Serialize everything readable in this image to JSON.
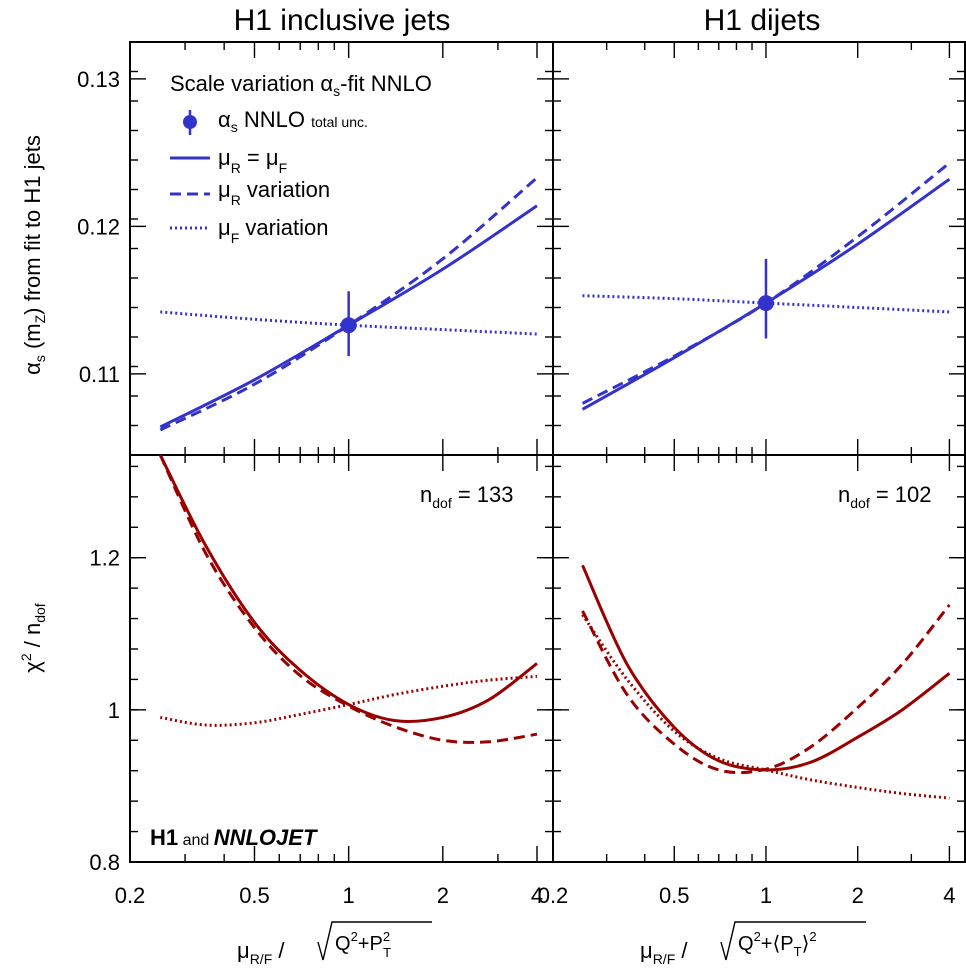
{
  "titles": {
    "left": "H1 inclusive jets",
    "right": "H1 dijets"
  },
  "y_axis": {
    "top_label": "αs (mZ) from fit to H1 jets",
    "bottom_label": "χ2 / ndof",
    "top_ticks": [
      "0.11",
      "0.12",
      "0.13"
    ],
    "bottom_ticks": [
      "0.8",
      "1",
      "1.2"
    ]
  },
  "x_axis": {
    "ticks": [
      "0.2",
      "0.5",
      "1",
      "2",
      "4"
    ],
    "left_label": "μR/F / √(Q2+PT2)",
    "right_label": "μR/F / √(Q2+⟨PT⟩2)"
  },
  "legend": {
    "title": "Scale variation αs-fit NNLO",
    "items": [
      {
        "label": "αs NNLO total unc.",
        "style": "point"
      },
      {
        "label": "μR = μF",
        "style": "solid"
      },
      {
        "label": "μR variation",
        "style": "dashed"
      },
      {
        "label": "μF variation",
        "style": "dotted"
      }
    ]
  },
  "ndof": {
    "left": "ndof = 133",
    "right": "ndof = 102"
  },
  "logo": "H1 and NNLOJET",
  "colors": {
    "alpha_s": "#3333cc",
    "chi2": "#990000"
  },
  "chart_data": [
    {
      "type": "line",
      "panel": "H1 inclusive jets, alpha_s",
      "x": [
        0.25,
        0.5,
        1,
        2,
        4
      ],
      "xscale": "log",
      "xlim": [
        0.2,
        4.5
      ],
      "ylim": [
        0.1045,
        0.1325
      ],
      "ylabel": "αs (mZ) from fit to H1 jets",
      "point": {
        "x": 1,
        "y": 0.1133,
        "err_up": 0.0023,
        "err_down": 0.0021
      },
      "series": [
        {
          "name": "μR = μF",
          "style": "solid",
          "values": [
            0.1064,
            0.1096,
            0.1133,
            0.1171,
            0.1214
          ]
        },
        {
          "name": "μR variation",
          "style": "dashed",
          "values": [
            0.1062,
            0.1093,
            0.1133,
            0.1178,
            0.1233
          ]
        },
        {
          "name": "μF variation",
          "style": "dotted",
          "values": [
            0.1142,
            0.1137,
            0.1133,
            0.113,
            0.1127
          ]
        }
      ]
    },
    {
      "type": "line",
      "panel": "H1 dijets, alpha_s",
      "x": [
        0.25,
        0.5,
        1,
        2,
        4
      ],
      "xscale": "log",
      "xlim": [
        0.2,
        4.5
      ],
      "ylim": [
        0.1045,
        0.1325
      ],
      "point": {
        "x": 1,
        "y": 0.1148,
        "err_up": 0.003,
        "err_down": 0.0024
      },
      "series": [
        {
          "name": "μR = μF",
          "style": "solid",
          "values": [
            0.1076,
            0.1111,
            0.1148,
            0.1188,
            0.1232
          ]
        },
        {
          "name": "μR variation",
          "style": "dashed",
          "values": [
            0.108,
            0.1112,
            0.1148,
            0.1193,
            0.1243
          ]
        },
        {
          "name": "μF variation",
          "style": "dotted",
          "values": [
            0.1153,
            0.1151,
            0.1148,
            0.1145,
            0.1142
          ]
        }
      ]
    },
    {
      "type": "line",
      "panel": "H1 inclusive jets, chi2/ndof",
      "x": [
        0.25,
        0.35,
        0.5,
        0.7,
        1,
        1.4,
        2,
        2.8,
        4
      ],
      "xscale": "log",
      "xlim": [
        0.2,
        4.5
      ],
      "ylim": [
        0.8,
        1.335
      ],
      "ylabel": "χ2 / ndof",
      "annotation": "ndof = 133",
      "series": [
        {
          "name": "μR = μF",
          "style": "solid",
          "values": [
            1.345,
            1.215,
            1.115,
            1.052,
            1.007,
            0.986,
            0.99,
            1.013,
            1.061
          ]
        },
        {
          "name": "μR variation",
          "style": "dashed",
          "values": [
            1.335,
            1.205,
            1.108,
            1.045,
            1.005,
            0.978,
            0.96,
            0.958,
            0.968
          ]
        },
        {
          "name": "μF variation",
          "style": "dotted",
          "values": [
            0.99,
            0.98,
            0.983,
            0.994,
            1.007,
            1.02,
            1.031,
            1.039,
            1.044
          ]
        }
      ]
    },
    {
      "type": "line",
      "panel": "H1 dijets, chi2/ndof",
      "x": [
        0.25,
        0.35,
        0.5,
        0.7,
        1,
        1.4,
        2,
        2.8,
        4
      ],
      "xscale": "log",
      "xlim": [
        0.2,
        4.5
      ],
      "ylim": [
        0.8,
        1.335
      ],
      "annotation": "ndof = 102",
      "series": [
        {
          "name": "μR = μF",
          "style": "solid",
          "values": [
            1.19,
            1.06,
            0.977,
            0.933,
            0.921,
            0.931,
            0.964,
            1.0,
            1.048
          ]
        },
        {
          "name": "μR variation",
          "style": "dashed",
          "values": [
            1.13,
            1.02,
            0.955,
            0.921,
            0.922,
            0.951,
            1.003,
            1.06,
            1.138
          ]
        },
        {
          "name": "μF variation",
          "style": "dotted",
          "values": [
            1.125,
            1.04,
            0.972,
            0.936,
            0.921,
            0.908,
            0.898,
            0.89,
            0.884
          ]
        }
      ]
    }
  ]
}
